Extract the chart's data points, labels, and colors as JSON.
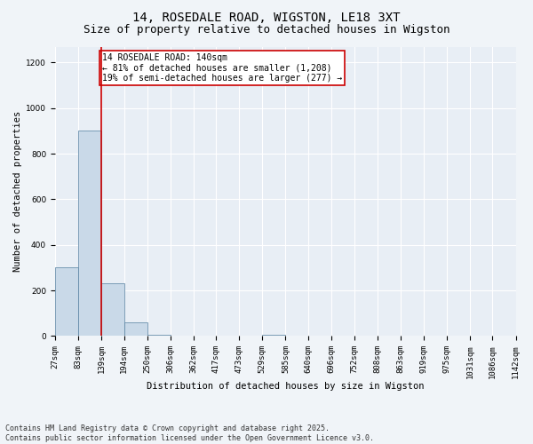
{
  "title": "14, ROSEDALE ROAD, WIGSTON, LE18 3XT",
  "subtitle": "Size of property relative to detached houses in Wigston",
  "xlabel": "Distribution of detached houses by size in Wigston",
  "ylabel": "Number of detached properties",
  "bar_edges": [
    27,
    83,
    139,
    194,
    250,
    306,
    362,
    417,
    473,
    529,
    585,
    640,
    696,
    752,
    808,
    863,
    919,
    975,
    1031,
    1086,
    1142
  ],
  "bar_heights": [
    300,
    900,
    230,
    60,
    5,
    0,
    0,
    0,
    0,
    5,
    0,
    0,
    0,
    0,
    0,
    0,
    0,
    0,
    0,
    0
  ],
  "bar_color": "#c9d9e8",
  "bar_edgecolor": "#5580a0",
  "property_line_x": 139,
  "property_line_color": "#cc0000",
  "annotation_text": "14 ROSEDALE ROAD: 140sqm\n← 81% of detached houses are smaller (1,208)\n19% of semi-detached houses are larger (277) →",
  "annotation_box_color": "#cc0000",
  "annotation_text_color": "#000000",
  "ylim": [
    0,
    1270
  ],
  "yticks": [
    0,
    200,
    400,
    600,
    800,
    1000,
    1200
  ],
  "bg_color": "#f0f4f8",
  "plot_bg_color": "#e8eef5",
  "grid_color": "#ffffff",
  "footnote": "Contains HM Land Registry data © Crown copyright and database right 2025.\nContains public sector information licensed under the Open Government Licence v3.0.",
  "title_fontsize": 10,
  "subtitle_fontsize": 9,
  "label_fontsize": 7.5,
  "tick_fontsize": 6.5,
  "annot_fontsize": 7
}
